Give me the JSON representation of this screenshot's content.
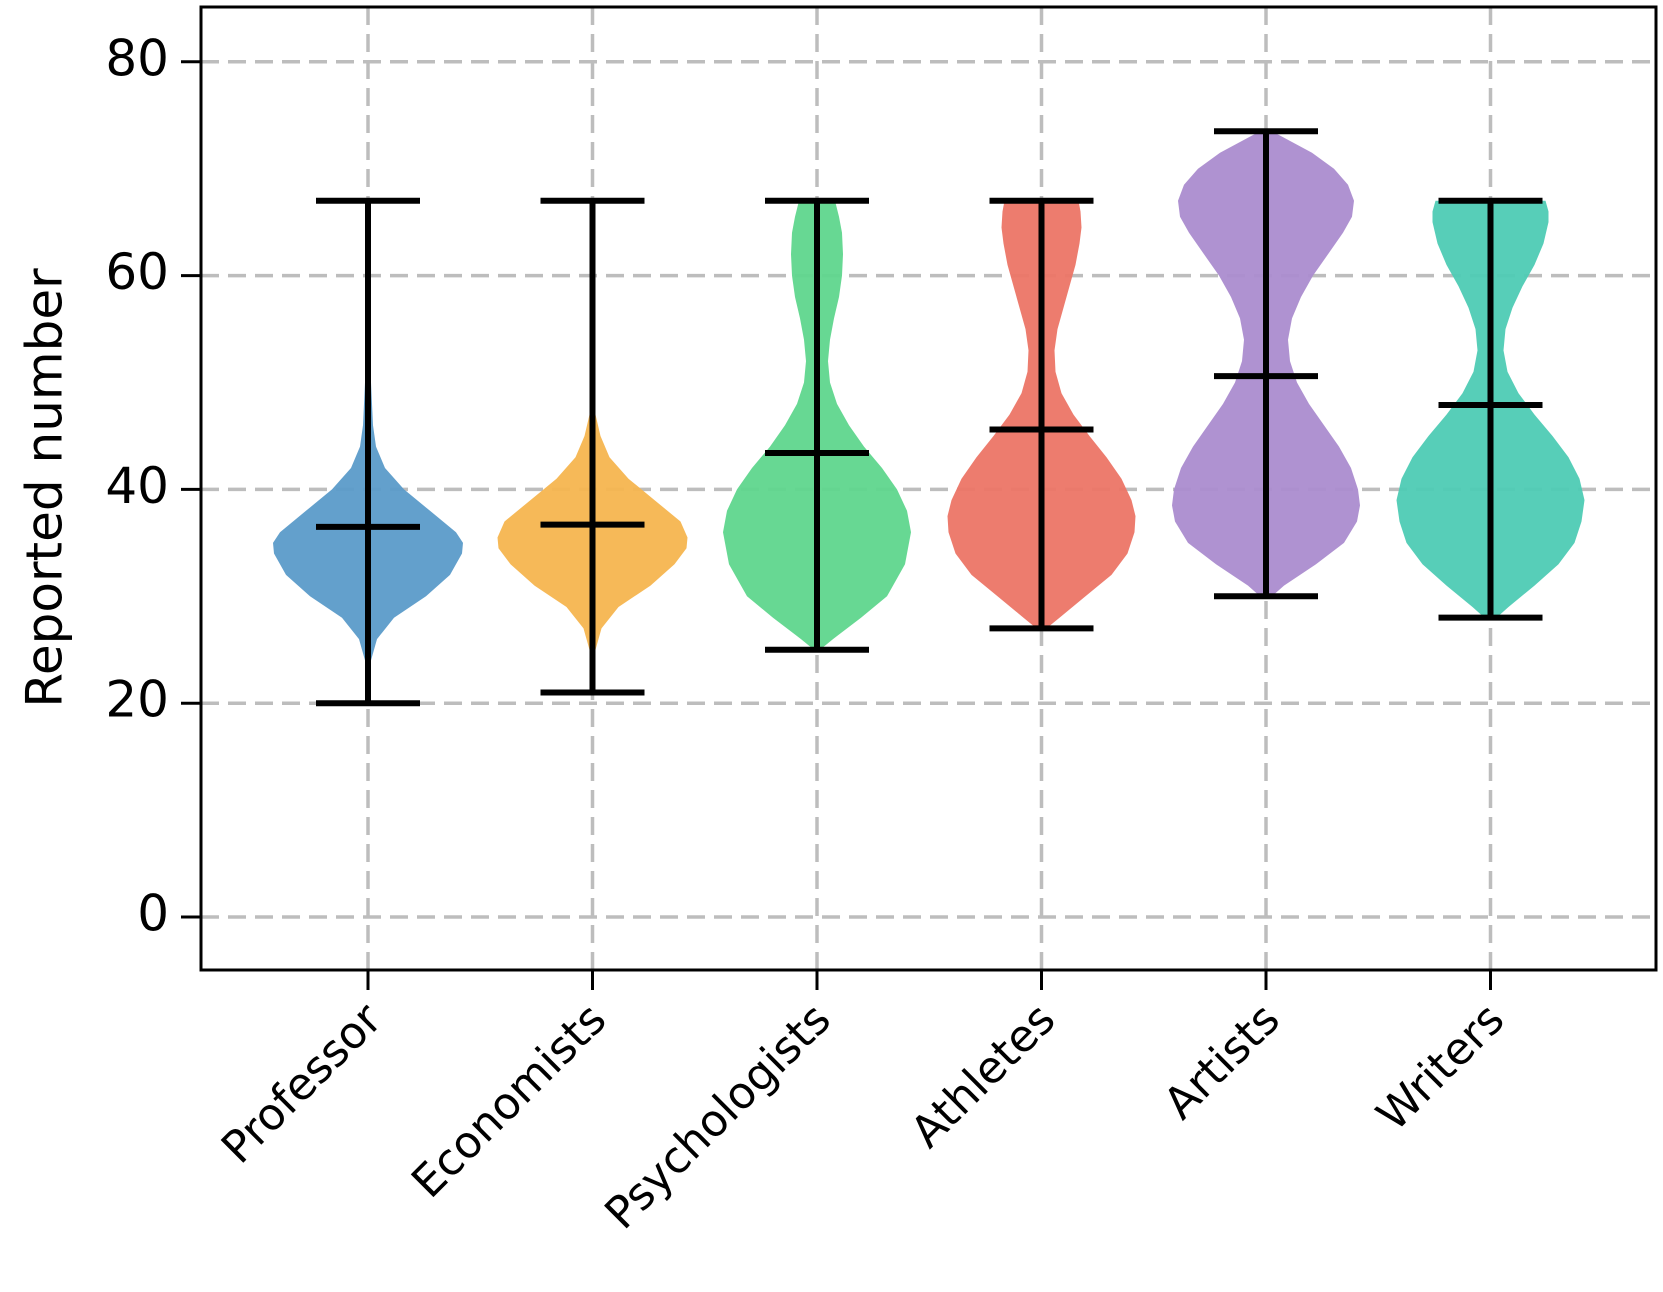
{
  "chart_data": {
    "type": "violin",
    "title": "",
    "xlabel": "",
    "ylabel": "Reported number",
    "ylim": [
      -5,
      85
    ],
    "yticks": [
      0,
      20,
      40,
      60,
      80
    ],
    "grid": true,
    "grid_style": "dashed",
    "categories": [
      "Professor",
      "Economists",
      "Psychologists",
      "Athletes",
      "Artists",
      "Writers"
    ],
    "colors": [
      "#5b9bc9",
      "#f6b54f",
      "#5fd68d",
      "#ec7566",
      "#ab8ccf",
      "#4ecbb4"
    ],
    "violins": [
      {
        "category": "Professor",
        "min": 20,
        "max": 67,
        "mean": 36.5,
        "profile": [
          [
            20,
            0.3
          ],
          [
            22,
            1
          ],
          [
            24,
            3
          ],
          [
            26,
            9
          ],
          [
            28,
            26
          ],
          [
            30,
            58
          ],
          [
            32,
            82
          ],
          [
            34,
            94
          ],
          [
            35,
            95
          ],
          [
            36,
            88
          ],
          [
            38,
            62
          ],
          [
            40,
            36
          ],
          [
            42,
            17
          ],
          [
            44,
            8
          ],
          [
            46,
            5
          ],
          [
            48,
            4
          ],
          [
            50,
            3
          ],
          [
            54,
            1.5
          ],
          [
            58,
            1
          ],
          [
            62,
            0.8
          ],
          [
            67,
            0.3
          ]
        ]
      },
      {
        "category": "Economists",
        "min": 21,
        "max": 67,
        "mean": 36.7,
        "profile": [
          [
            21,
            0.3
          ],
          [
            23,
            1
          ],
          [
            25,
            3
          ],
          [
            27,
            9
          ],
          [
            29,
            26
          ],
          [
            31,
            58
          ],
          [
            33,
            82
          ],
          [
            34.5,
            94
          ],
          [
            35.5,
            95
          ],
          [
            37,
            88
          ],
          [
            39,
            62
          ],
          [
            41,
            36
          ],
          [
            43,
            17
          ],
          [
            45,
            8
          ],
          [
            47,
            3
          ],
          [
            50,
            1.5
          ],
          [
            55,
            1
          ],
          [
            60,
            2.5
          ],
          [
            63,
            1.5
          ],
          [
            67,
            0.3
          ]
        ]
      },
      {
        "category": "Psychologists",
        "min": 25,
        "max": 67,
        "mean": 43.4,
        "profile": [
          [
            25,
            3
          ],
          [
            26,
            16
          ],
          [
            28,
            44
          ],
          [
            30,
            70
          ],
          [
            33,
            88
          ],
          [
            36,
            94
          ],
          [
            38,
            90
          ],
          [
            40,
            80
          ],
          [
            42,
            65
          ],
          [
            44,
            47
          ],
          [
            46,
            32
          ],
          [
            48,
            20
          ],
          [
            50,
            13
          ],
          [
            52,
            11
          ],
          [
            54,
            13
          ],
          [
            56,
            17
          ],
          [
            58,
            22
          ],
          [
            60,
            25
          ],
          [
            62,
            26
          ],
          [
            64,
            25
          ],
          [
            65.5,
            22
          ],
          [
            67,
            18
          ]
        ]
      },
      {
        "category": "Athletes",
        "min": 27,
        "max": 67,
        "mean": 45.6,
        "profile": [
          [
            27,
            5
          ],
          [
            28,
            18
          ],
          [
            30,
            44
          ],
          [
            32,
            70
          ],
          [
            34,
            86
          ],
          [
            36,
            93
          ],
          [
            37.5,
            94
          ],
          [
            39,
            90
          ],
          [
            41,
            80
          ],
          [
            43,
            65
          ],
          [
            45,
            48
          ],
          [
            47,
            32
          ],
          [
            49,
            20
          ],
          [
            51,
            14
          ],
          [
            53,
            13
          ],
          [
            55,
            16
          ],
          [
            57,
            22
          ],
          [
            59,
            28
          ],
          [
            61,
            34
          ],
          [
            63,
            38
          ],
          [
            64.5,
            40
          ],
          [
            66,
            39
          ],
          [
            67,
            37
          ]
        ]
      },
      {
        "category": "Artists",
        "min": 30,
        "max": 73.5,
        "mean": 50.6,
        "profile": [
          [
            30,
            6
          ],
          [
            31,
            18
          ],
          [
            33,
            50
          ],
          [
            35,
            78
          ],
          [
            37,
            91
          ],
          [
            38.5,
            94
          ],
          [
            40,
            92
          ],
          [
            42,
            85
          ],
          [
            44,
            73
          ],
          [
            46,
            58
          ],
          [
            48,
            43
          ],
          [
            50,
            31
          ],
          [
            52,
            24
          ],
          [
            54,
            22
          ],
          [
            56,
            26
          ],
          [
            58,
            35
          ],
          [
            60,
            47
          ],
          [
            62,
            62
          ],
          [
            64,
            77
          ],
          [
            65.5,
            86
          ],
          [
            67,
            88
          ],
          [
            68.5,
            82
          ],
          [
            70,
            68
          ],
          [
            71.5,
            46
          ],
          [
            72.5,
            26
          ],
          [
            73.5,
            6
          ]
        ]
      },
      {
        "category": "Writers",
        "min": 28,
        "max": 67,
        "mean": 47.9,
        "profile": [
          [
            28,
            6
          ],
          [
            29,
            18
          ],
          [
            31,
            44
          ],
          [
            33,
            68
          ],
          [
            35,
            84
          ],
          [
            37,
            91
          ],
          [
            39,
            94
          ],
          [
            41,
            89
          ],
          [
            43,
            78
          ],
          [
            45,
            62
          ],
          [
            47,
            44
          ],
          [
            49,
            28
          ],
          [
            51,
            17
          ],
          [
            53,
            13
          ],
          [
            55,
            15
          ],
          [
            57,
            22
          ],
          [
            59,
            32
          ],
          [
            61,
            44
          ],
          [
            63,
            53
          ],
          [
            65,
            58
          ],
          [
            66,
            58
          ],
          [
            67,
            55
          ]
        ]
      }
    ]
  }
}
